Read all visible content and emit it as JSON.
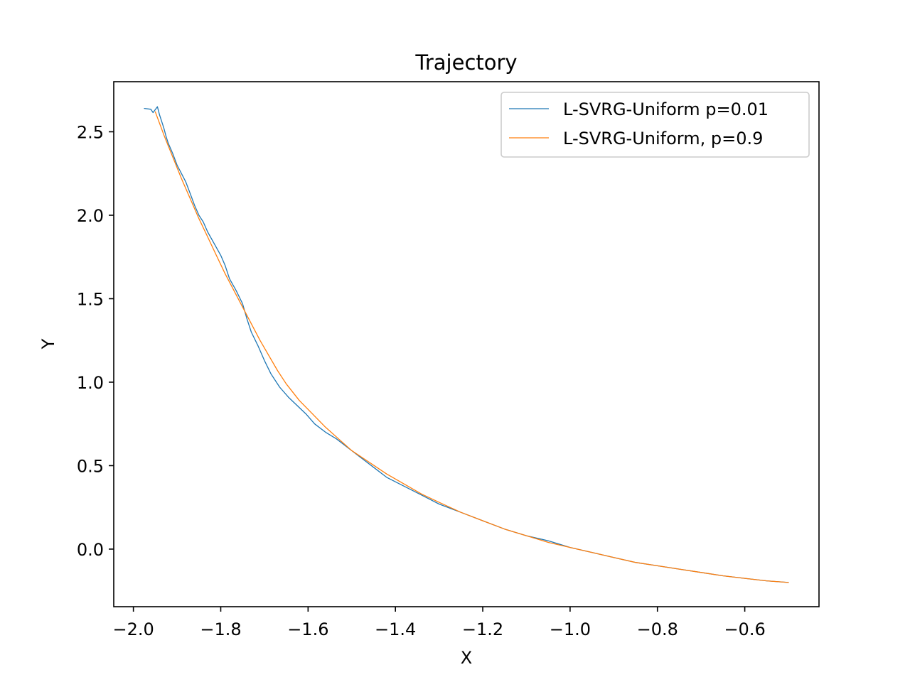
{
  "chart_data": {
    "type": "line",
    "title": "Trajectory",
    "xlabel": "X",
    "ylabel": "Y",
    "xlim": [
      -2.045,
      -0.43
    ],
    "ylim": [
      -0.345,
      2.8
    ],
    "xticks": [
      -2.0,
      -1.8,
      -1.6,
      -1.4,
      -1.2,
      -1.0,
      -0.8,
      -0.6
    ],
    "xtick_labels": [
      "−2.0",
      "−1.8",
      "−1.6",
      "−1.4",
      "−1.2",
      "−1.0",
      "−0.8",
      "−0.6"
    ],
    "yticks": [
      0.0,
      0.5,
      1.0,
      1.5,
      2.0,
      2.5
    ],
    "ytick_labels": [
      "0.0",
      "0.5",
      "1.0",
      "1.5",
      "2.0",
      "2.5"
    ],
    "grid": false,
    "legend_position": "top-right",
    "series": [
      {
        "name": "L-SVRG-Uniform p=0.01",
        "color": "#1f77b4",
        "points": [
          [
            -1.975,
            2.64
          ],
          [
            -1.96,
            2.635
          ],
          [
            -1.955,
            2.615
          ],
          [
            -1.945,
            2.65
          ],
          [
            -1.94,
            2.6
          ],
          [
            -1.935,
            2.56
          ],
          [
            -1.93,
            2.52
          ],
          [
            -1.925,
            2.47
          ],
          [
            -1.92,
            2.43
          ],
          [
            -1.91,
            2.37
          ],
          [
            -1.9,
            2.3
          ],
          [
            -1.89,
            2.25
          ],
          [
            -1.88,
            2.2
          ],
          [
            -1.87,
            2.13
          ],
          [
            -1.86,
            2.06
          ],
          [
            -1.85,
            2.0
          ],
          [
            -1.84,
            1.96
          ],
          [
            -1.83,
            1.9
          ],
          [
            -1.815,
            1.83
          ],
          [
            -1.8,
            1.76
          ],
          [
            -1.79,
            1.7
          ],
          [
            -1.78,
            1.62
          ],
          [
            -1.765,
            1.55
          ],
          [
            -1.75,
            1.47
          ],
          [
            -1.74,
            1.38
          ],
          [
            -1.73,
            1.3
          ],
          [
            -1.715,
            1.22
          ],
          [
            -1.7,
            1.13
          ],
          [
            -1.685,
            1.05
          ],
          [
            -1.665,
            0.97
          ],
          [
            -1.645,
            0.91
          ],
          [
            -1.625,
            0.86
          ],
          [
            -1.605,
            0.81
          ],
          [
            -1.585,
            0.75
          ],
          [
            -1.56,
            0.7
          ],
          [
            -1.535,
            0.66
          ],
          [
            -1.51,
            0.61
          ],
          [
            -1.48,
            0.55
          ],
          [
            -1.45,
            0.49
          ],
          [
            -1.42,
            0.43
          ],
          [
            -1.39,
            0.39
          ],
          [
            -1.36,
            0.35
          ],
          [
            -1.33,
            0.31
          ],
          [
            -1.3,
            0.27
          ],
          [
            -1.25,
            0.22
          ],
          [
            -1.2,
            0.17
          ],
          [
            -1.15,
            0.12
          ],
          [
            -1.1,
            0.08
          ],
          [
            -1.05,
            0.05
          ],
          [
            -1.0,
            0.01
          ],
          [
            -0.95,
            -0.02
          ],
          [
            -0.9,
            -0.05
          ],
          [
            -0.85,
            -0.08
          ],
          [
            -0.8,
            -0.1
          ],
          [
            -0.75,
            -0.12
          ],
          [
            -0.7,
            -0.14
          ],
          [
            -0.65,
            -0.16
          ],
          [
            -0.6,
            -0.175
          ],
          [
            -0.55,
            -0.19
          ],
          [
            -0.5,
            -0.2
          ]
        ]
      },
      {
        "name": "L-SVRG-Uniform, p=0.9",
        "color": "#ff7f0e",
        "points": [
          [
            -1.95,
            2.62
          ],
          [
            -1.93,
            2.48
          ],
          [
            -1.91,
            2.35
          ],
          [
            -1.89,
            2.22
          ],
          [
            -1.87,
            2.1
          ],
          [
            -1.85,
            1.98
          ],
          [
            -1.83,
            1.87
          ],
          [
            -1.81,
            1.76
          ],
          [
            -1.79,
            1.65
          ],
          [
            -1.77,
            1.55
          ],
          [
            -1.75,
            1.45
          ],
          [
            -1.73,
            1.35
          ],
          [
            -1.71,
            1.25
          ],
          [
            -1.69,
            1.16
          ],
          [
            -1.67,
            1.07
          ],
          [
            -1.65,
            0.99
          ],
          [
            -1.62,
            0.89
          ],
          [
            -1.59,
            0.81
          ],
          [
            -1.56,
            0.73
          ],
          [
            -1.53,
            0.66
          ],
          [
            -1.5,
            0.59
          ],
          [
            -1.46,
            0.52
          ],
          [
            -1.42,
            0.45
          ],
          [
            -1.38,
            0.39
          ],
          [
            -1.34,
            0.33
          ],
          [
            -1.3,
            0.28
          ],
          [
            -1.25,
            0.22
          ],
          [
            -1.2,
            0.17
          ],
          [
            -1.15,
            0.12
          ],
          [
            -1.1,
            0.08
          ],
          [
            -1.05,
            0.04
          ],
          [
            -1.0,
            0.01
          ],
          [
            -0.95,
            -0.02
          ],
          [
            -0.9,
            -0.05
          ],
          [
            -0.85,
            -0.08
          ],
          [
            -0.8,
            -0.1
          ],
          [
            -0.75,
            -0.12
          ],
          [
            -0.7,
            -0.14
          ],
          [
            -0.65,
            -0.16
          ],
          [
            -0.6,
            -0.175
          ],
          [
            -0.55,
            -0.19
          ],
          [
            -0.5,
            -0.2
          ]
        ]
      }
    ]
  }
}
